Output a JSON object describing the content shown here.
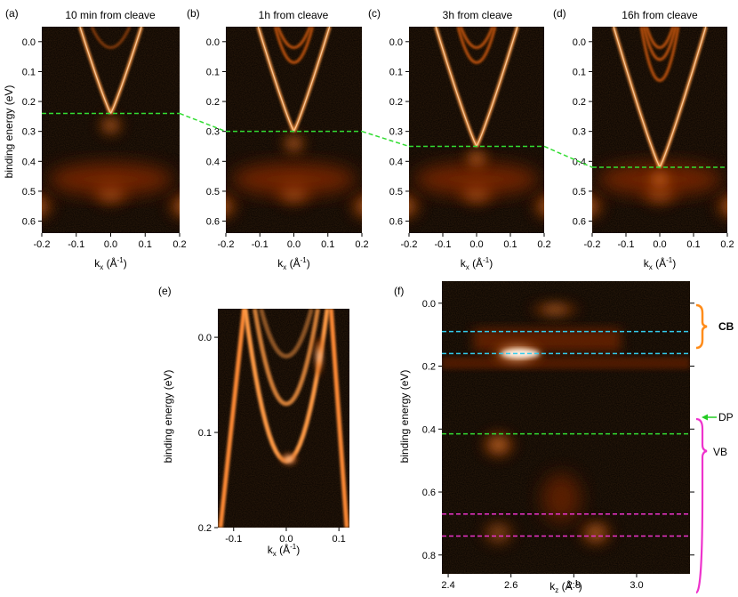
{
  "figure": {
    "panel_labels": [
      "(a)",
      "(b)",
      "(c)",
      "(d)",
      "(e)",
      "(f)"
    ],
    "titles": [
      "10 min from cleave",
      "1h from cleave",
      "3h from cleave",
      "16h from cleave"
    ],
    "ylabel_energy": "binding energy (eV)",
    "xlabel_kx": "kx (Å⁻¹)",
    "xlabel_kz": "kz (Å⁻¹)",
    "kx_main": "k",
    "kx_sub": "x",
    "kz_main": "k",
    "kz_sub": "z",
    "unit_open": "(Å",
    "unit_exp": "-1",
    "unit_close": ")",
    "annotations": {
      "cb": "CB",
      "dp": "DP",
      "vb": "VB"
    },
    "colors": {
      "dirac_line": "#33dd33",
      "cb_lines": "#33ccee",
      "vb_lines": "#ee33cc",
      "cb_label": "#ff8c1a",
      "dp_label": "#22cc22",
      "vb_label": "#ee33cc",
      "colormap": [
        "#000000",
        "#3a0e00",
        "#8a3200",
        "#e06010",
        "#ff9a45",
        "#fff0e0"
      ]
    }
  },
  "chart_data": [
    {
      "type": "heatmap",
      "panel": "(a)",
      "title": "10 min from cleave",
      "xlabel": "kx (Å⁻¹)",
      "ylabel": "binding energy (eV)",
      "xlim": [
        -0.2,
        0.2
      ],
      "ylim": [
        0.64,
        -0.05
      ],
      "xticks": [
        "-0.2",
        "-0.1",
        "0.0",
        "0.1",
        "0.2"
      ],
      "yticks": [
        "0.0",
        "0.1",
        "0.2",
        "0.3",
        "0.4",
        "0.5",
        "0.6"
      ],
      "dirac_point_eV": 0.24
    },
    {
      "type": "heatmap",
      "panel": "(b)",
      "title": "1h from cleave",
      "xlabel": "kx (Å⁻¹)",
      "ylabel": "",
      "xlim": [
        -0.2,
        0.2
      ],
      "ylim": [
        0.64,
        -0.05
      ],
      "xticks": [
        "-0.2",
        "-0.1",
        "0.0",
        "0.1",
        "0.2"
      ],
      "yticks": [
        "0.0",
        "0.1",
        "0.2",
        "0.3",
        "0.4",
        "0.5",
        "0.6"
      ],
      "dirac_point_eV": 0.3
    },
    {
      "type": "heatmap",
      "panel": "(c)",
      "title": "3h from cleave",
      "xlabel": "kx (Å⁻¹)",
      "ylabel": "",
      "xlim": [
        -0.2,
        0.2
      ],
      "ylim": [
        0.64,
        -0.05
      ],
      "xticks": [
        "-0.2",
        "-0.1",
        "0.0",
        "0.1",
        "0.2"
      ],
      "yticks": [
        "0.0",
        "0.1",
        "0.2",
        "0.3",
        "0.4",
        "0.5",
        "0.6"
      ],
      "dirac_point_eV": 0.35
    },
    {
      "type": "heatmap",
      "panel": "(d)",
      "title": "16h from cleave",
      "xlabel": "kx (Å⁻¹)",
      "ylabel": "",
      "xlim": [
        -0.2,
        0.2
      ],
      "ylim": [
        0.64,
        -0.05
      ],
      "xticks": [
        "-0.2",
        "-0.1",
        "0.0",
        "0.1",
        "0.2"
      ],
      "yticks": [
        "0.0",
        "0.1",
        "0.2",
        "0.3",
        "0.4",
        "0.5",
        "0.6"
      ],
      "dirac_point_eV": 0.42
    },
    {
      "type": "heatmap",
      "panel": "(e)",
      "title": "",
      "xlabel": "kx (Å⁻¹)",
      "ylabel": "binding energy (eV)",
      "xlim": [
        -0.13,
        0.12
      ],
      "ylim": [
        0.2,
        -0.03
      ],
      "xticks": [
        "-0.1",
        "0.0",
        "0.1"
      ],
      "yticks": [
        "0.0",
        "0.1",
        "0.2"
      ]
    },
    {
      "type": "heatmap",
      "panel": "(f)",
      "title": "",
      "xlabel": "kz (Å⁻¹)",
      "ylabel": "binding energy (eV)",
      "xlim": [
        2.38,
        3.17
      ],
      "ylim": [
        0.86,
        -0.07
      ],
      "xticks": [
        "2.4",
        "2.6",
        "2.8",
        "3.0"
      ],
      "yticks": [
        "0.0",
        "0.2",
        "0.4",
        "0.6",
        "0.8"
      ],
      "cb_levels_eV": [
        0.09,
        0.16
      ],
      "dirac_point_eV": 0.415,
      "vb_levels_eV": [
        0.67,
        0.74
      ],
      "blobs": [
        {
          "kz": 2.74,
          "E": 0.02,
          "intensity": 0.8
        },
        {
          "kz": 2.62,
          "E": 0.16,
          "intensity": 1.0
        },
        {
          "kz": 2.56,
          "E": 0.45,
          "intensity": 0.9
        },
        {
          "kz": 2.56,
          "E": 0.73,
          "intensity": 0.6
        },
        {
          "kz": 2.87,
          "E": 0.73,
          "intensity": 0.8
        }
      ]
    }
  ]
}
